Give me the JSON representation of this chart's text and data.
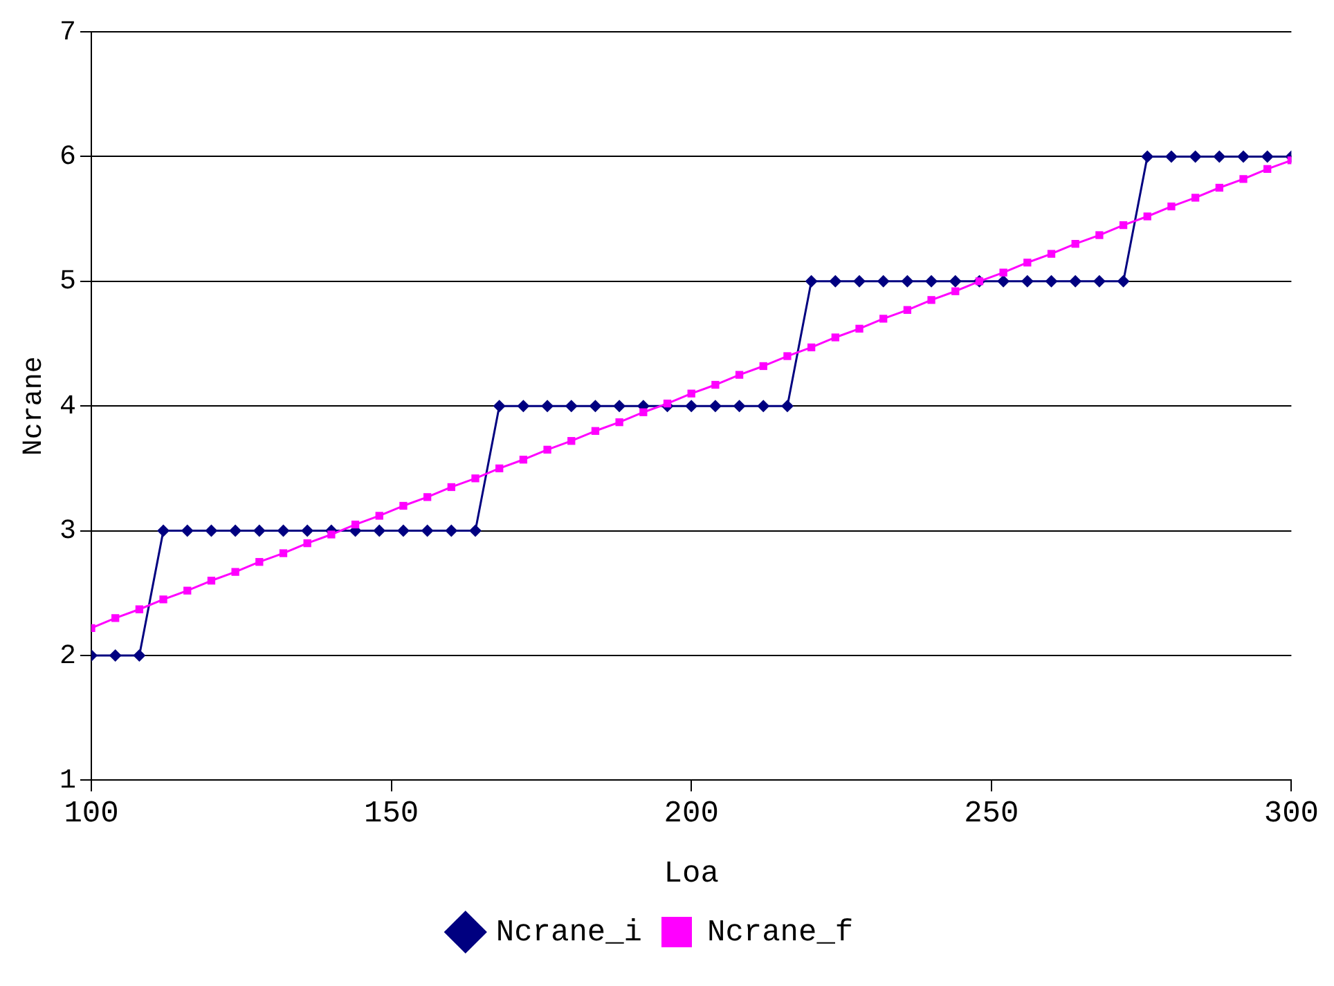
{
  "chart_data": {
    "type": "line",
    "xlabel": "Loa",
    "ylabel": "Ncrane",
    "x": [
      100,
      104,
      108,
      112,
      116,
      120,
      124,
      128,
      132,
      136,
      140,
      144,
      148,
      152,
      156,
      160,
      164,
      168,
      172,
      176,
      180,
      184,
      188,
      192,
      196,
      200,
      204,
      208,
      212,
      216,
      220,
      224,
      228,
      232,
      236,
      240,
      244,
      248,
      252,
      256,
      260,
      264,
      268,
      272,
      276,
      280,
      284,
      288,
      292,
      296,
      300
    ],
    "series": [
      {
        "name": "Ncrane_i",
        "color": "#000080",
        "marker": "diamond",
        "values": [
          2,
          2,
          2,
          3,
          3,
          3,
          3,
          3,
          3,
          3,
          3,
          3,
          3,
          3,
          3,
          3,
          3,
          4,
          4,
          4,
          4,
          4,
          4,
          4,
          4,
          4,
          4,
          4,
          4,
          4,
          5,
          5,
          5,
          5,
          5,
          5,
          5,
          5,
          5,
          5,
          5,
          5,
          5,
          5,
          6,
          6,
          6,
          6,
          6,
          6,
          6
        ]
      },
      {
        "name": "Ncrane_f",
        "color": "#ff00ff",
        "marker": "square",
        "values": [
          2.22,
          2.3,
          2.37,
          2.45,
          2.52,
          2.6,
          2.67,
          2.75,
          2.82,
          2.9,
          2.97,
          3.05,
          3.12,
          3.2,
          3.27,
          3.35,
          3.42,
          3.5,
          3.57,
          3.65,
          3.72,
          3.8,
          3.87,
          3.95,
          4.02,
          4.1,
          4.17,
          4.25,
          4.32,
          4.4,
          4.47,
          4.55,
          4.62,
          4.7,
          4.77,
          4.85,
          4.92,
          5.0,
          5.07,
          5.15,
          5.22,
          5.3,
          5.37,
          5.45,
          5.52,
          5.6,
          5.67,
          5.75,
          5.82,
          5.9,
          5.97
        ]
      }
    ],
    "xlim": [
      100,
      300
    ],
    "xticks": [
      100,
      150,
      200,
      250,
      300
    ],
    "ylim": [
      1,
      7
    ],
    "yticks": [
      1,
      2,
      3,
      4,
      5,
      6,
      7
    ],
    "grid": "y",
    "legend": "bottom",
    "line_style": "solid"
  }
}
